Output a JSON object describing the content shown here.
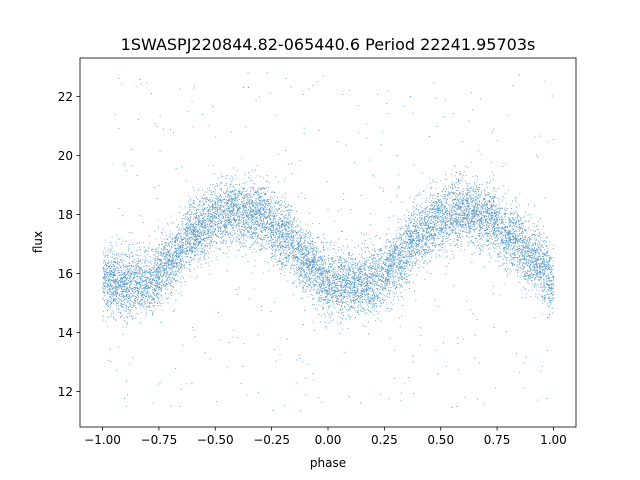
{
  "chart_data": {
    "type": "scatter",
    "title": "1SWASPJ220844.82-065440.6 Period 22241.95703s",
    "xlabel": "phase",
    "ylabel": "flux",
    "xlim": [
      -1.1,
      1.1
    ],
    "ylim": [
      10.8,
      23.3
    ],
    "xticks": [
      -1.0,
      -0.75,
      -0.5,
      -0.25,
      0.0,
      0.25,
      0.5,
      0.75,
      1.0
    ],
    "xtick_labels": [
      "−1.00",
      "−0.75",
      "−0.50",
      "−0.25",
      "0.00",
      "0.25",
      "0.50",
      "0.75",
      "1.00"
    ],
    "yticks": [
      12,
      14,
      16,
      18,
      20,
      22
    ],
    "ytick_labels": [
      "12",
      "14",
      "16",
      "18",
      "20",
      "22"
    ],
    "grid": false,
    "marker_color": "#1f77b4",
    "series": [
      {
        "phase_min": -1.0,
        "phase_max": 1.0,
        "trend_phase": [
          -1.0,
          -0.9,
          -0.8,
          -0.7,
          -0.6,
          -0.5,
          -0.4,
          -0.3,
          -0.2,
          -0.1,
          0.0,
          0.1,
          0.2,
          0.3,
          0.4,
          0.5,
          0.6,
          0.7,
          0.8,
          0.9,
          1.0
        ],
        "trend_flux": [
          15.8,
          15.6,
          15.7,
          16.4,
          17.4,
          17.9,
          18.1,
          17.9,
          17.3,
          16.4,
          15.7,
          15.6,
          15.7,
          16.4,
          17.3,
          17.9,
          18.1,
          17.9,
          17.3,
          16.5,
          15.8
        ],
        "scatter_sigma": 0.55,
        "outlier_flux_range": [
          11.3,
          22.8
        ]
      }
    ]
  }
}
